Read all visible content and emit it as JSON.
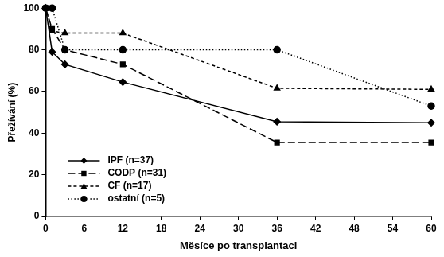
{
  "chart_data": {
    "type": "line",
    "x_label": "Měsíce po transplantaci",
    "y_label": "Přežívání (%)",
    "x": [
      0,
      1,
      3,
      12,
      36,
      60
    ],
    "series": [
      {
        "name": "IPF (n=37)",
        "color": "#000000",
        "marker": "diamond",
        "line_style": "solid",
        "values": [
          100,
          79,
          73,
          64.5,
          45.5,
          45
        ]
      },
      {
        "name": "CODP (n=31)",
        "color": "#000000",
        "marker": "square",
        "line_style": "long_dash",
        "values": [
          100,
          90,
          80,
          73,
          35.5,
          35.5
        ]
      },
      {
        "name": "CF (n=17)",
        "color": "#000000",
        "marker": "triangle",
        "line_style": "dash",
        "values": [
          100,
          89,
          88,
          88,
          61.5,
          61
        ]
      },
      {
        "name": "ostatní (n=5)",
        "color": "#000000",
        "marker": "circle",
        "line_style": "dot",
        "values": [
          100,
          100,
          80,
          80,
          80,
          53
        ]
      }
    ],
    "xlim": [
      0,
      60
    ],
    "xticks": [
      0,
      6,
      12,
      18,
      24,
      30,
      36,
      42,
      48,
      54,
      60
    ],
    "ylim": [
      0,
      100
    ],
    "yticks": [
      0,
      20,
      40,
      60,
      80,
      100
    ],
    "grid": false,
    "legend": "lower left"
  }
}
